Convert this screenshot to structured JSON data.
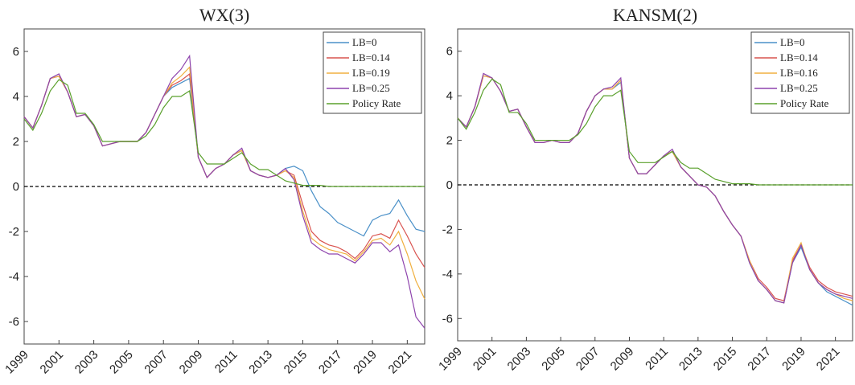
{
  "chart_data": [
    {
      "type": "line",
      "title": "WX(3)",
      "x": [
        1999,
        1999.5,
        2000,
        2000.5,
        2001,
        2001.5,
        2002,
        2002.5,
        2003,
        2003.5,
        2004,
        2004.5,
        2005,
        2005.5,
        2006,
        2006.5,
        2007,
        2007.5,
        2008,
        2008.5,
        2009,
        2009.5,
        2010,
        2010.5,
        2011,
        2011.5,
        2012,
        2012.5,
        2013,
        2013.5,
        2014,
        2014.5,
        2015,
        2015.5,
        2016,
        2016.5,
        2017,
        2017.5,
        2018,
        2018.5,
        2019,
        2019.5,
        2020,
        2020.5,
        2021,
        2021.5,
        2022
      ],
      "series": [
        {
          "name": "LB=0",
          "color": "#4a90c8",
          "values": [
            3.1,
            2.6,
            3.6,
            4.8,
            4.9,
            4.2,
            3.1,
            3.2,
            2.7,
            1.8,
            1.9,
            2.0,
            2.0,
            2.0,
            2.4,
            3.2,
            4.0,
            4.4,
            4.6,
            4.8,
            1.3,
            0.4,
            0.8,
            1.0,
            1.4,
            1.6,
            0.7,
            0.5,
            0.4,
            0.5,
            0.8,
            0.9,
            0.7,
            -0.2,
            -0.9,
            -1.2,
            -1.6,
            -1.8,
            -2.0,
            -2.2,
            -1.5,
            -1.3,
            -1.2,
            -0.6,
            -1.3,
            -1.9,
            -2.0
          ]
        },
        {
          "name": "LB=0.14",
          "color": "#d9534f",
          "values": [
            3.1,
            2.6,
            3.6,
            4.8,
            4.9,
            4.2,
            3.1,
            3.2,
            2.7,
            1.8,
            1.9,
            2.0,
            2.0,
            2.0,
            2.4,
            3.2,
            4.0,
            4.5,
            4.7,
            5.0,
            1.3,
            0.4,
            0.8,
            1.0,
            1.4,
            1.6,
            0.7,
            0.5,
            0.4,
            0.5,
            0.7,
            0.5,
            -0.8,
            -2.0,
            -2.4,
            -2.6,
            -2.7,
            -2.9,
            -3.2,
            -2.8,
            -2.2,
            -2.1,
            -2.3,
            -1.5,
            -2.2,
            -3.0,
            -3.6
          ]
        },
        {
          "name": "LB=0.19",
          "color": "#f0b040",
          "values": [
            3.1,
            2.6,
            3.6,
            4.8,
            4.9,
            4.2,
            3.1,
            3.2,
            2.7,
            1.8,
            1.9,
            2.0,
            2.0,
            2.0,
            2.4,
            3.2,
            4.0,
            4.6,
            4.9,
            5.3,
            1.3,
            0.4,
            0.8,
            1.0,
            1.4,
            1.6,
            0.7,
            0.5,
            0.4,
            0.5,
            0.7,
            0.4,
            -1.1,
            -2.3,
            -2.6,
            -2.8,
            -2.9,
            -3.0,
            -3.3,
            -2.9,
            -2.4,
            -2.3,
            -2.6,
            -2.0,
            -3.0,
            -4.2,
            -5.0
          ]
        },
        {
          "name": "LB=0.25",
          "color": "#8e44ad",
          "values": [
            3.1,
            2.6,
            3.6,
            4.8,
            5.0,
            4.2,
            3.1,
            3.2,
            2.7,
            1.8,
            1.9,
            2.0,
            2.0,
            2.0,
            2.4,
            3.2,
            4.0,
            4.8,
            5.2,
            5.8,
            1.3,
            0.4,
            0.8,
            1.0,
            1.4,
            1.7,
            0.7,
            0.5,
            0.4,
            0.5,
            0.8,
            0.3,
            -1.3,
            -2.5,
            -2.8,
            -3.0,
            -3.0,
            -3.2,
            -3.4,
            -3.0,
            -2.5,
            -2.5,
            -2.9,
            -2.6,
            -4.0,
            -5.8,
            -6.3
          ]
        },
        {
          "name": "Policy Rate",
          "color": "#5aa02c",
          "values": [
            3,
            2.5,
            3.25,
            4.25,
            4.75,
            4.5,
            3.25,
            3.25,
            2.75,
            2,
            2,
            2,
            2,
            2,
            2.25,
            2.75,
            3.5,
            4,
            4,
            4.25,
            1.5,
            1,
            1,
            1,
            1.25,
            1.5,
            1,
            0.75,
            0.75,
            0.5,
            0.25,
            0.15,
            0.05,
            0.05,
            0.05,
            0,
            0,
            0,
            0,
            0,
            0,
            0,
            0,
            0,
            0,
            0,
            0
          ]
        }
      ],
      "xlim": [
        1999,
        2022
      ],
      "xticks": [
        1999,
        2001,
        2003,
        2005,
        2007,
        2009,
        2011,
        2013,
        2015,
        2017,
        2019,
        2021
      ],
      "ylim": [
        -7,
        7
      ],
      "yticks": [
        -6,
        -4,
        -2,
        0,
        2,
        4,
        6
      ],
      "hline": 0,
      "legend": "top-right"
    },
    {
      "type": "line",
      "title": "KANSM(2)",
      "x": [
        1999,
        1999.5,
        2000,
        2000.5,
        2001,
        2001.5,
        2002,
        2002.5,
        2003,
        2003.5,
        2004,
        2004.5,
        2005,
        2005.5,
        2006,
        2006.5,
        2007,
        2007.5,
        2008,
        2008.5,
        2009,
        2009.5,
        2010,
        2010.5,
        2011,
        2011.5,
        2012,
        2012.5,
        2013,
        2013.5,
        2014,
        2014.5,
        2015,
        2015.5,
        2016,
        2016.5,
        2017,
        2017.5,
        2018,
        2018.5,
        2019,
        2019.5,
        2020,
        2020.5,
        2021,
        2021.5,
        2022
      ],
      "series": [
        {
          "name": "LB=0",
          "color": "#4a90c8",
          "values": [
            3.0,
            2.6,
            3.5,
            4.9,
            4.8,
            4.2,
            3.3,
            3.4,
            2.6,
            1.9,
            1.9,
            2.0,
            1.9,
            1.9,
            2.3,
            3.3,
            4.0,
            4.3,
            4.3,
            4.6,
            1.2,
            0.5,
            0.5,
            0.9,
            1.3,
            1.5,
            0.8,
            0.4,
            0.0,
            -0.1,
            -0.5,
            -1.2,
            -1.8,
            -2.3,
            -3.5,
            -4.3,
            -4.7,
            -5.2,
            -5.3,
            -3.5,
            -2.8,
            -3.8,
            -4.4,
            -4.8,
            -5.0,
            -5.2,
            -5.4
          ]
        },
        {
          "name": "LB=0.14",
          "color": "#d9534f",
          "values": [
            3.0,
            2.6,
            3.5,
            4.9,
            4.8,
            4.2,
            3.3,
            3.4,
            2.6,
            1.9,
            1.9,
            2.0,
            1.9,
            1.9,
            2.3,
            3.3,
            4.0,
            4.3,
            4.3,
            4.7,
            1.2,
            0.5,
            0.5,
            0.9,
            1.3,
            1.5,
            0.8,
            0.4,
            0.0,
            -0.1,
            -0.5,
            -1.2,
            -1.8,
            -2.3,
            -3.4,
            -4.2,
            -4.6,
            -5.1,
            -5.2,
            -3.4,
            -2.7,
            -3.7,
            -4.3,
            -4.6,
            -4.8,
            -4.9,
            -5.0
          ]
        },
        {
          "name": "LB=0.16",
          "color": "#f0b040",
          "values": [
            3.0,
            2.6,
            3.5,
            4.9,
            4.8,
            4.2,
            3.3,
            3.4,
            2.6,
            1.9,
            1.9,
            2.0,
            1.9,
            1.9,
            2.3,
            3.3,
            4.0,
            4.3,
            4.3,
            4.7,
            1.2,
            0.5,
            0.5,
            0.9,
            1.3,
            1.5,
            0.8,
            0.4,
            0.0,
            -0.1,
            -0.5,
            -1.2,
            -1.8,
            -2.3,
            -3.4,
            -4.3,
            -4.7,
            -5.2,
            -5.3,
            -3.3,
            -2.6,
            -3.8,
            -4.4,
            -4.7,
            -4.9,
            -5.1,
            -5.2
          ]
        },
        {
          "name": "LB=0.25",
          "color": "#8e44ad",
          "values": [
            3.0,
            2.6,
            3.5,
            5.0,
            4.8,
            4.2,
            3.3,
            3.4,
            2.6,
            1.9,
            1.9,
            2.0,
            1.9,
            1.9,
            2.3,
            3.3,
            4.0,
            4.3,
            4.4,
            4.8,
            1.2,
            0.5,
            0.5,
            0.9,
            1.3,
            1.6,
            0.8,
            0.4,
            0.0,
            -0.1,
            -0.5,
            -1.2,
            -1.8,
            -2.3,
            -3.5,
            -4.3,
            -4.7,
            -5.2,
            -5.3,
            -3.5,
            -2.7,
            -3.8,
            -4.4,
            -4.7,
            -4.9,
            -5.0,
            -5.1
          ]
        },
        {
          "name": "Policy Rate",
          "color": "#5aa02c",
          "values": [
            3,
            2.5,
            3.25,
            4.25,
            4.75,
            4.5,
            3.25,
            3.25,
            2.75,
            2,
            2,
            2,
            2,
            2,
            2.25,
            2.75,
            3.5,
            4,
            4,
            4.25,
            1.5,
            1,
            1,
            1,
            1.25,
            1.5,
            1,
            0.75,
            0.75,
            0.5,
            0.25,
            0.15,
            0.05,
            0.05,
            0.05,
            0,
            0,
            0,
            0,
            0,
            0,
            0,
            0,
            0,
            0,
            0,
            0
          ]
        }
      ],
      "xlim": [
        1999,
        2022
      ],
      "xticks": [
        1999,
        2001,
        2003,
        2005,
        2007,
        2009,
        2011,
        2013,
        2015,
        2017,
        2019,
        2021
      ],
      "ylim": [
        -7,
        7
      ],
      "yticks": [
        -6,
        -4,
        -2,
        0,
        2,
        4,
        6
      ],
      "hline": 0,
      "legend": "top-right"
    }
  ]
}
